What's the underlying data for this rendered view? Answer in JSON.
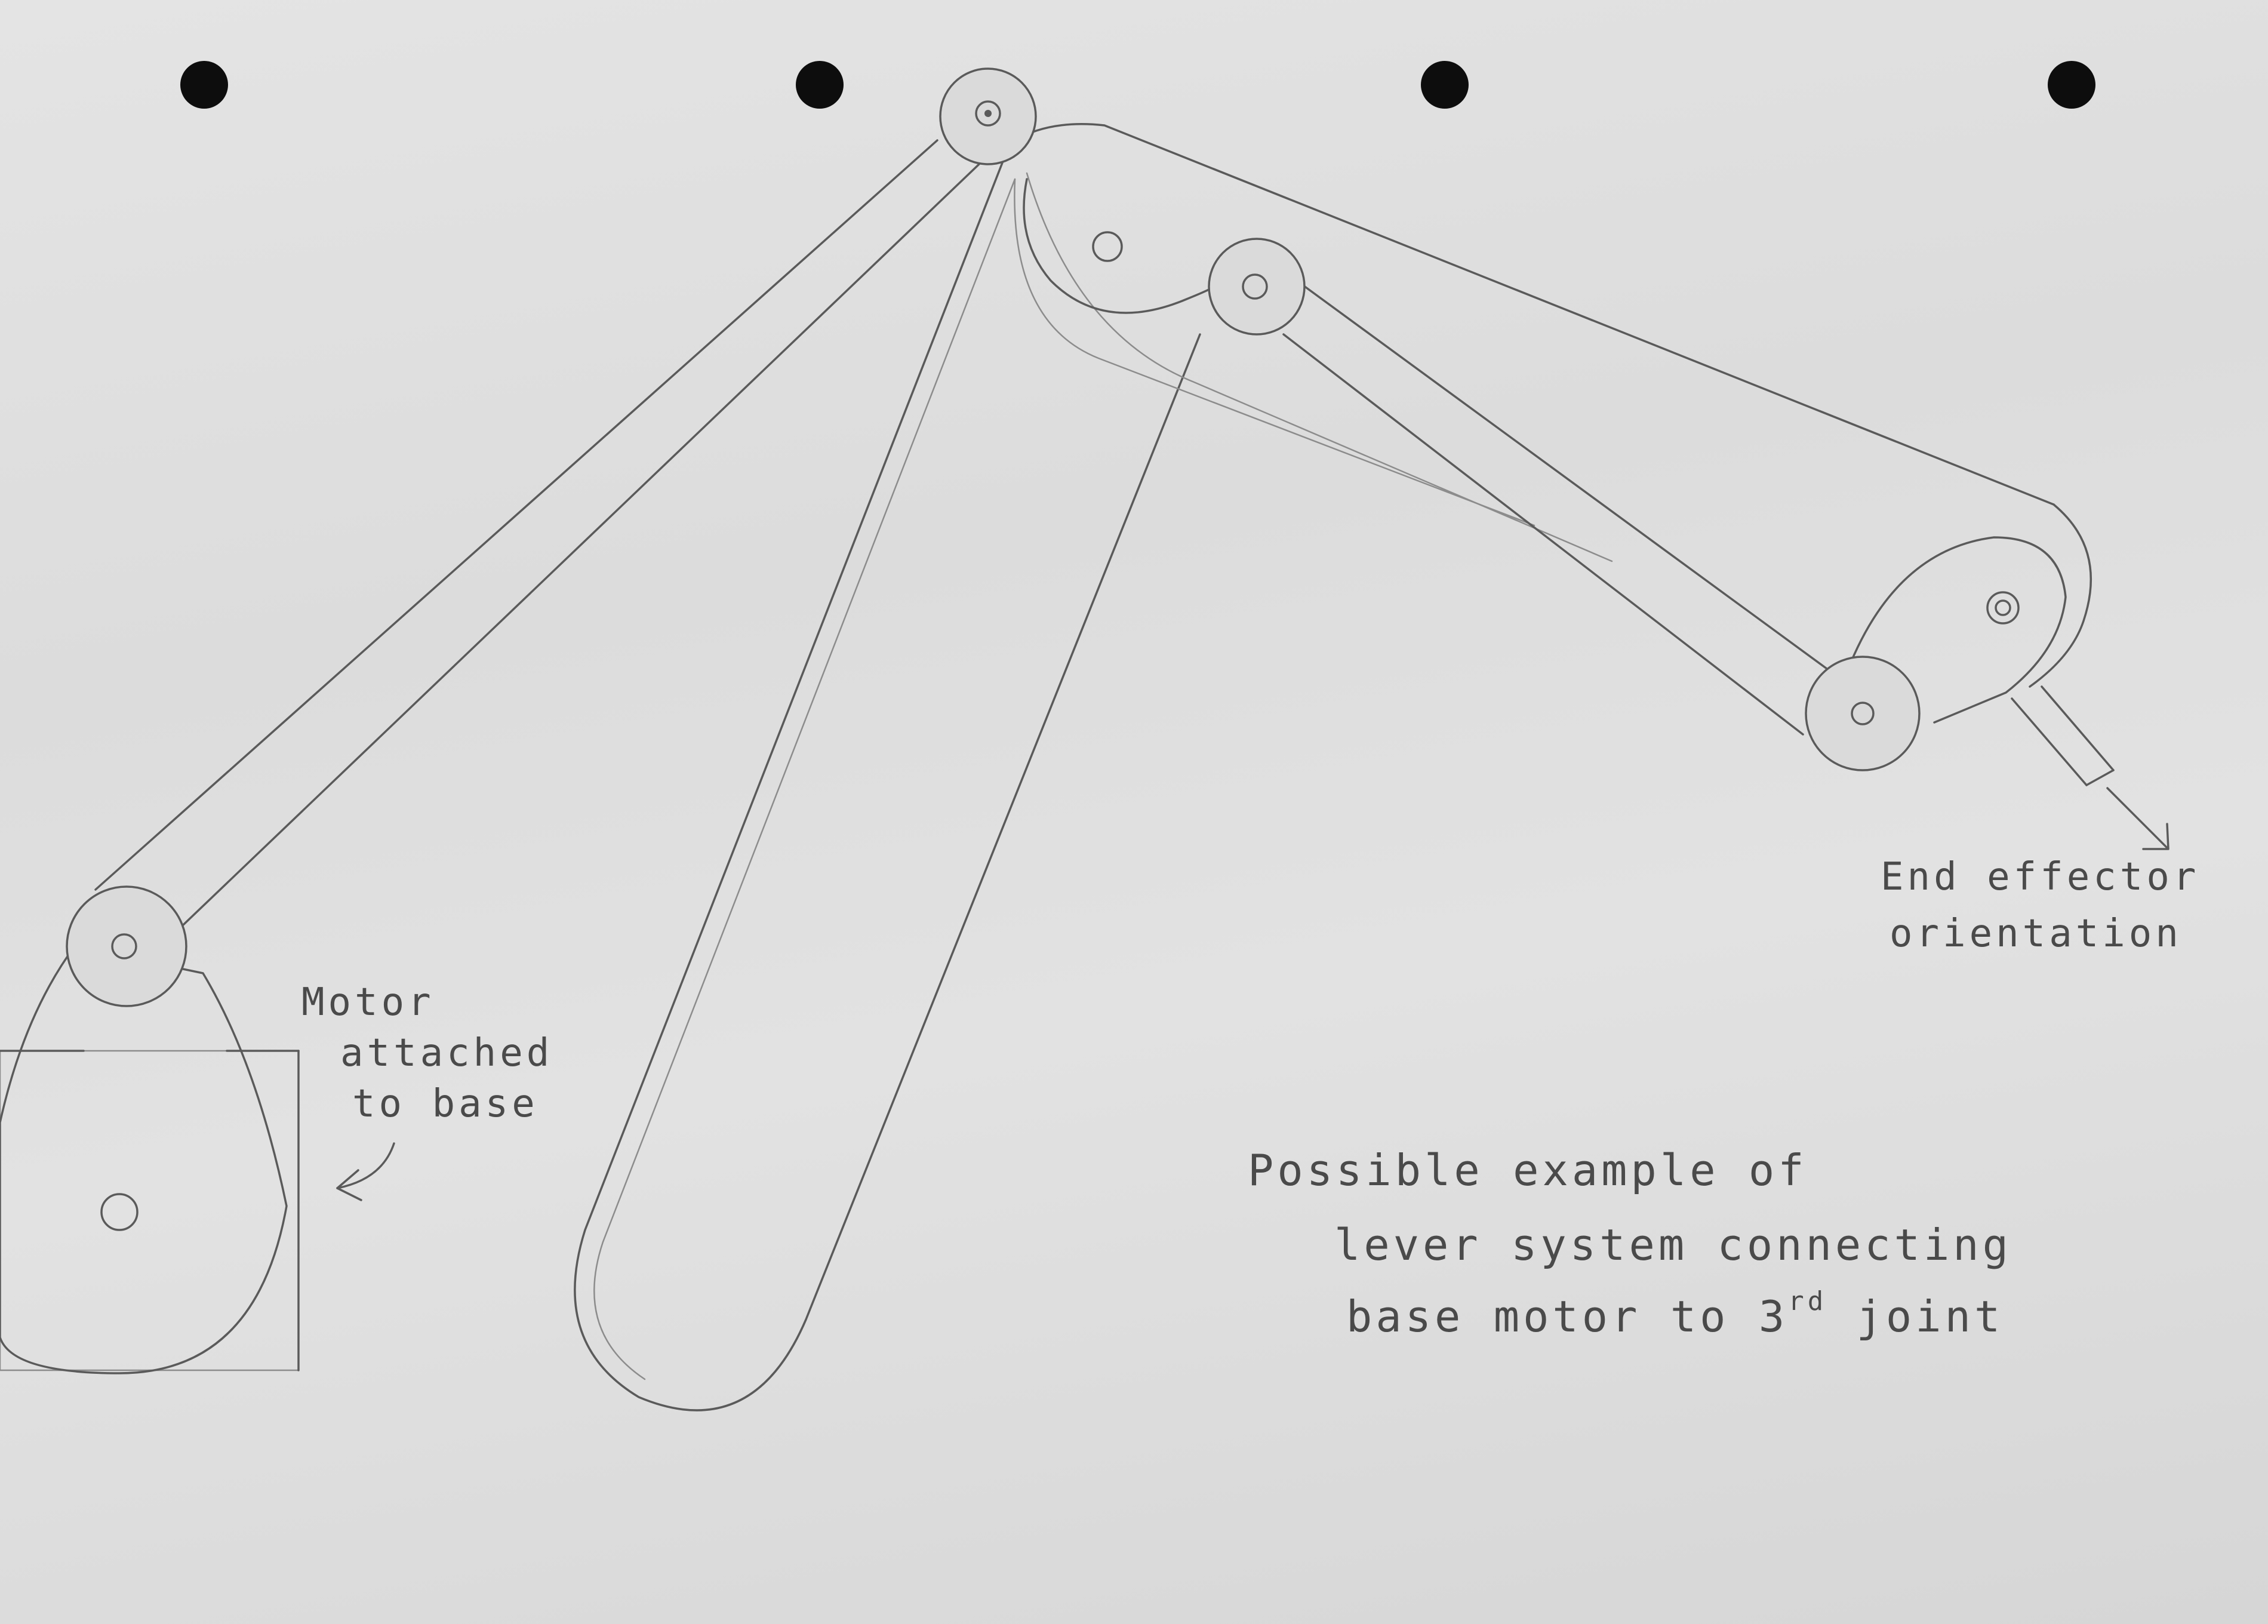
{
  "annotations": {
    "motor": [
      "Motor",
      "attached",
      "to base"
    ],
    "end_effector": [
      "End effector",
      "orientation"
    ],
    "description": [
      "Possible example of",
      "lever system connecting"
    ],
    "description_last": {
      "before": "base motor to 3",
      "superscript": "rd",
      "after": " joint"
    }
  }
}
